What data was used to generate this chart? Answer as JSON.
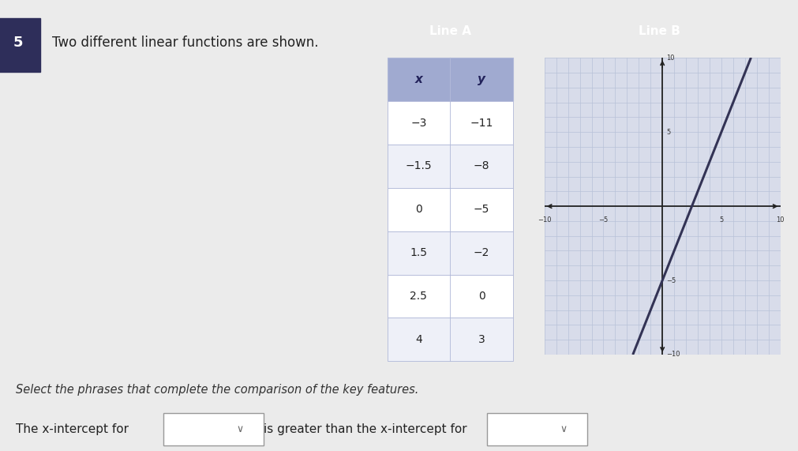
{
  "page_bg": "#ebebeb",
  "question_number": "5",
  "question_text": "Two different linear functions are shown.",
  "line_a_header": "Line A",
  "line_b_header": "Line B",
  "table_x_str": [
    "−3",
    "−1.5",
    "0",
    "1.5",
    "2.5",
    "4"
  ],
  "table_y_str": [
    "−11",
    "−8",
    "−5",
    "−2",
    "0",
    "3"
  ],
  "header_bg": "#7c85b5",
  "table_col_header_bg": "#a0aad0",
  "table_row_bg_even": "#ffffff",
  "table_row_bg_odd": "#eef0f8",
  "table_border": "#b0b8d8",
  "graph_bg": "#d8dcea",
  "graph_grid_color": "#b8c2d8",
  "graph_axis_color": "#222222",
  "line_b_color": "#333355",
  "line_b_slope": 2.0,
  "line_b_x_intercept": 2.5,
  "xmin": -10,
  "xmax": 10,
  "ymin": -10,
  "ymax": 10,
  "select_text": "Select the phrases that complete the comparison of the key features.",
  "bottom_text_1": "The x-intercept for",
  "bottom_text_2": "is greater than the x-intercept for"
}
